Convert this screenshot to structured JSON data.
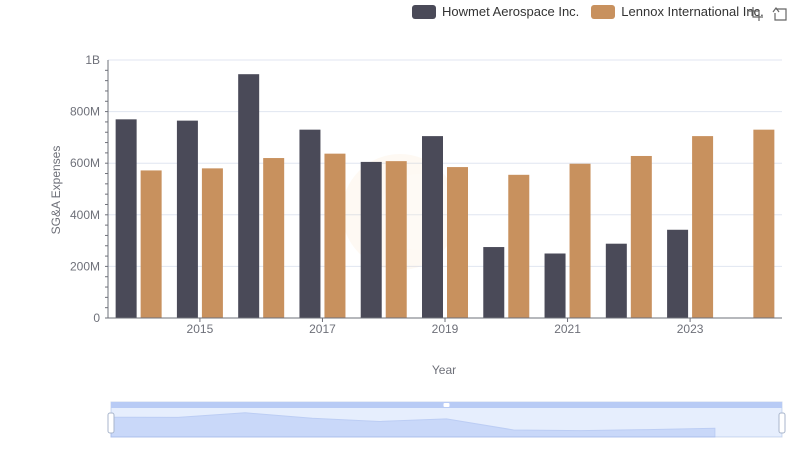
{
  "legend": [
    {
      "name": "Howmet Aerospace Inc.",
      "color": "#4a4a58"
    },
    {
      "name": "Lennox International Inc.",
      "color": "#c8915e"
    }
  ],
  "toolbox": {
    "zoom_icon": "zoom-icon",
    "restore_icon": "restore-icon"
  },
  "chart_data": {
    "type": "bar",
    "xlabel": "Year",
    "ylabel": "SG&A Expenses",
    "ylim": [
      0,
      1000000000
    ],
    "y_ticks": [
      "0",
      "200M",
      "400M",
      "600M",
      "800M",
      "1B"
    ],
    "x_tick_labels": [
      "2015",
      "2017",
      "2019",
      "2021",
      "2023"
    ],
    "categories": [
      "2014",
      "2015",
      "2016",
      "2017",
      "2018",
      "2019",
      "2020",
      "2021",
      "2022",
      "2023",
      "2024"
    ],
    "series": [
      {
        "name": "Howmet Aerospace Inc.",
        "color": "#4a4a58",
        "values": [
          770000000,
          765000000,
          945000000,
          730000000,
          605000000,
          705000000,
          275000000,
          250000000,
          288000000,
          342000000,
          null
        ]
      },
      {
        "name": "Lennox International Inc.",
        "color": "#c8915e",
        "values": [
          572000000,
          580000000,
          620000000,
          637000000,
          608000000,
          585000000,
          555000000,
          598000000,
          628000000,
          705000000,
          730000000
        ]
      }
    ],
    "grid": true,
    "legend_position": "top-right",
    "datazoom": {
      "range": [
        0,
        100
      ]
    }
  }
}
